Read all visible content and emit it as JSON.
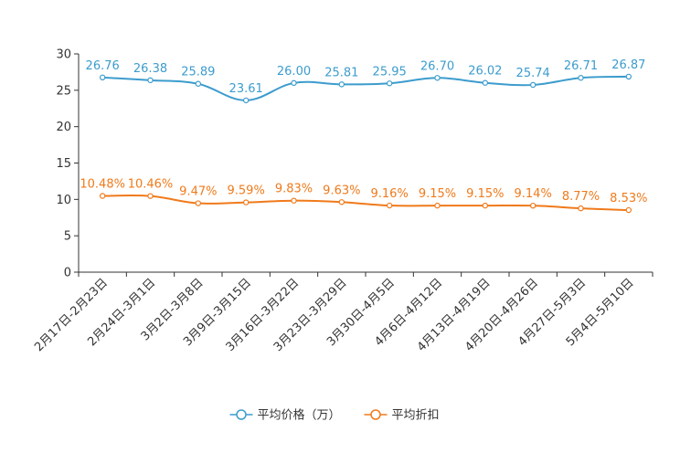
{
  "chart_data": {
    "type": "line",
    "categories": [
      "2月17日-2月23日",
      "2月24日-3月1日",
      "3月2日-3月8日",
      "3月9日-3月15日",
      "3月16日-3月22日",
      "3月23日-3月29日",
      "3月30日-4月5日",
      "4月6日-4月12日",
      "4月13日-4月19日",
      "4月20日-4月26日",
      "4月27日-5月3日",
      "5月4日-5月10日"
    ],
    "series": [
      {
        "name": "平均价格（万）",
        "color": "#3c9ccd",
        "values": [
          26.76,
          26.38,
          25.89,
          23.61,
          26.0,
          25.81,
          25.95,
          26.7,
          26.02,
          25.74,
          26.71,
          26.87
        ],
        "labels": [
          "26.76",
          "26.38",
          "25.89",
          "23.61",
          "26.00",
          "25.81",
          "25.95",
          "26.70",
          "26.02",
          "25.74",
          "26.71",
          "26.87"
        ]
      },
      {
        "name": "平均折扣",
        "color": "#f07a1b",
        "values": [
          10.48,
          10.46,
          9.47,
          9.59,
          9.83,
          9.63,
          9.16,
          9.15,
          9.15,
          9.14,
          8.77,
          8.53
        ],
        "labels": [
          "10.48%",
          "10.46%",
          "9.47%",
          "9.59%",
          "9.83%",
          "9.63%",
          "9.16%",
          "9.15%",
          "9.15%",
          "9.14%",
          "8.77%",
          "8.53%"
        ]
      }
    ],
    "yticks": [
      0,
      5,
      10,
      15,
      20,
      25,
      30
    ],
    "ylim": [
      0,
      30
    ],
    "title": "",
    "xlabel": "",
    "ylabel": "",
    "legend_position": "bottom-center",
    "axis_color": "#333333"
  }
}
